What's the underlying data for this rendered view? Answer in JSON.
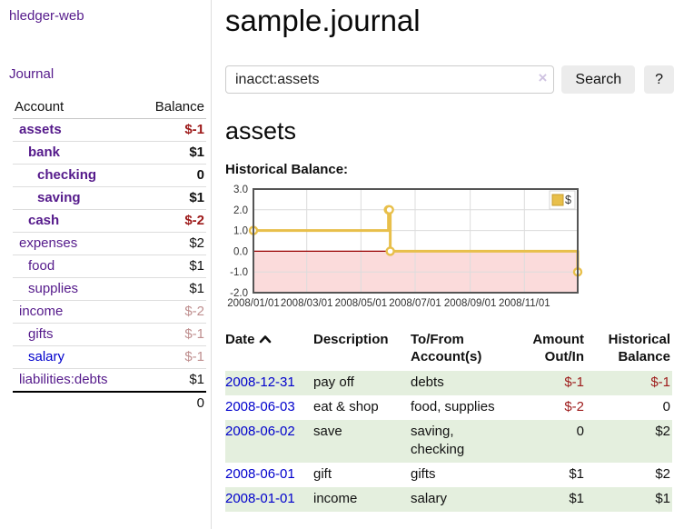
{
  "app": {
    "title": "hledger-web"
  },
  "colors": {
    "purple": "#551a8b",
    "blue": "#0000cc",
    "negative_strong": "#9d1a1a",
    "negative_faded": "#bf8f8f",
    "table_stripe_green": "#e4efde",
    "chart_line_gold": "#e8bf4a",
    "chart_gold_dark": "#c79c2e",
    "chart_negative_fill": "#fbdbdb",
    "chart_zero_line": "#990000"
  },
  "sidebar": {
    "journal_link": "Journal",
    "accounts": {
      "header_account": "Account",
      "header_balance": "Balance",
      "rows": [
        {
          "name": "assets",
          "indent": 1,
          "bold": true,
          "balance": "$-1",
          "balance_style": "negative-strong"
        },
        {
          "name": "bank",
          "indent": 2,
          "bold": true,
          "balance": "$1",
          "balance_style": "normal"
        },
        {
          "name": "checking",
          "indent": 3,
          "bold": true,
          "balance": "0",
          "balance_style": "normal"
        },
        {
          "name": "saving",
          "indent": 3,
          "bold": true,
          "balance": "$1",
          "balance_style": "normal"
        },
        {
          "name": "cash",
          "indent": 2,
          "bold": true,
          "balance": "$-2",
          "balance_style": "negative-strong"
        },
        {
          "name": "expenses",
          "indent": 1,
          "bold": false,
          "balance": "$2",
          "balance_style": "normal"
        },
        {
          "name": "food",
          "indent": 2,
          "bold": false,
          "balance": "$1",
          "balance_style": "normal"
        },
        {
          "name": "supplies",
          "indent": 2,
          "bold": false,
          "balance": "$1",
          "balance_style": "normal"
        },
        {
          "name": "income",
          "indent": 1,
          "bold": false,
          "balance": "$-2",
          "balance_style": "negative-faded"
        },
        {
          "name": "gifts",
          "indent": 2,
          "bold": false,
          "balance": "$-1",
          "balance_style": "negative-faded"
        },
        {
          "name": "salary",
          "indent": 2,
          "bold": false,
          "link_color": "blue",
          "balance": "$-1",
          "balance_style": "negative-faded"
        },
        {
          "name": "liabilities:debts",
          "indent": 1,
          "bold": false,
          "balance": "$1",
          "balance_style": "normal"
        }
      ],
      "total": "0"
    }
  },
  "header": {
    "title": "sample.journal"
  },
  "search": {
    "value": "inacct:assets",
    "clear_icon": "×",
    "search_button": "Search",
    "help_button": "?"
  },
  "account_page": {
    "title": "assets",
    "chart_label": "Historical Balance:"
  },
  "chart_data": {
    "type": "line",
    "step": true,
    "title": "Historical Balance",
    "series": [
      {
        "name": "$",
        "points": [
          [
            "2008-01-01",
            1
          ],
          [
            "2008-06-01",
            2
          ],
          [
            "2008-06-02",
            2
          ],
          [
            "2008-06-03",
            0
          ],
          [
            "2008-12-31",
            -1
          ]
        ]
      }
    ],
    "x_range": [
      "2008-01-01",
      "2008-12-31"
    ],
    "ylim": [
      -2,
      3
    ],
    "y_ticks": [
      "3.0",
      "2.0",
      "1.0",
      "0.0",
      "-1.0",
      "-2.0"
    ],
    "x_ticks": [
      {
        "date": "2008-01-01",
        "label": "2008/01/01"
      },
      {
        "date": "2008-03-01",
        "label": "2008/03/01"
      },
      {
        "date": "2008-05-01",
        "label": "2008/05/01"
      },
      {
        "date": "2008-07-01",
        "label": "2008/07/01"
      },
      {
        "date": "2008-09-01",
        "label": "2008/09/01"
      },
      {
        "date": "2008-11-01",
        "label": "2008/11/01"
      }
    ],
    "legend": {
      "label": "$",
      "position": "top-right"
    },
    "grid": true
  },
  "register_table": {
    "headers": {
      "date": "Date",
      "sort_icon": "chevron-up",
      "description": "Description",
      "accounts_line1": "To/From",
      "accounts_line2": "Account(s)",
      "amount_line1": "Amount",
      "amount_line2": "Out/In",
      "balance_line1": "Historical",
      "balance_line2": "Balance"
    },
    "rows": [
      {
        "date": "2008-12-31",
        "description": "pay off",
        "accounts": "debts",
        "amount": "$-1",
        "amount_negative": true,
        "balance": "$-1",
        "balance_negative": true,
        "striped": true
      },
      {
        "date": "2008-06-03",
        "description": "eat & shop",
        "accounts": "food, supplies",
        "amount": "$-2",
        "amount_negative": true,
        "balance": "0",
        "balance_negative": false,
        "striped": false
      },
      {
        "date": "2008-06-02",
        "description": "save",
        "accounts": "saving, checking",
        "amount": "0",
        "amount_negative": false,
        "balance": "$2",
        "balance_negative": false,
        "striped": true
      },
      {
        "date": "2008-06-01",
        "description": "gift",
        "accounts": "gifts",
        "amount": "$1",
        "amount_negative": false,
        "balance": "$2",
        "balance_negative": false,
        "striped": false
      },
      {
        "date": "2008-01-01",
        "description": "income",
        "accounts": "salary",
        "amount": "$1",
        "amount_negative": false,
        "balance": "$1",
        "balance_negative": false,
        "striped": true
      }
    ]
  }
}
